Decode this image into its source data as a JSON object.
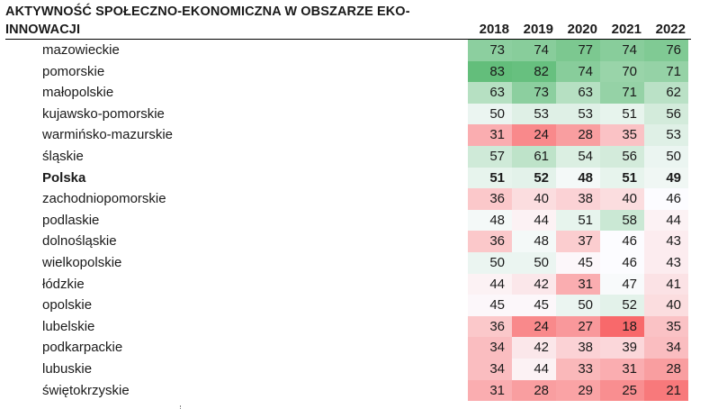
{
  "chart_data": {
    "type": "table",
    "title": "AKTYWNOŚĆ SPOŁECZNO-EKONOMICZNA W OBSZARZE EKO-INNOWACJI",
    "title_lines": [
      "AKTYWNOŚĆ SPOŁECZNO-EKONOMICZNA W OBSZARZE EKO-",
      "INNOWACJI"
    ],
    "columns": [
      "2018",
      "2019",
      "2020",
      "2021",
      "2022"
    ],
    "rows": [
      {
        "region": "mazowieckie",
        "values": [
          73,
          74,
          77,
          74,
          76
        ]
      },
      {
        "region": "pomorskie",
        "values": [
          83,
          82,
          74,
          70,
          71
        ]
      },
      {
        "region": "małopolskie",
        "values": [
          63,
          73,
          63,
          71,
          62
        ]
      },
      {
        "region": "kujawsko-pomorskie",
        "values": [
          50,
          53,
          53,
          51,
          56
        ]
      },
      {
        "region": "warmińsko-mazurskie",
        "values": [
          31,
          24,
          28,
          35,
          53
        ]
      },
      {
        "region": "śląskie",
        "values": [
          57,
          61,
          54,
          56,
          50
        ]
      },
      {
        "region": "Polska",
        "values": [
          51,
          52,
          48,
          51,
          49
        ],
        "bold": true
      },
      {
        "region": "zachodniopomorskie",
        "values": [
          36,
          40,
          38,
          40,
          46
        ]
      },
      {
        "region": "podlaskie",
        "values": [
          48,
          44,
          51,
          58,
          44
        ]
      },
      {
        "region": "dolnośląskie",
        "values": [
          36,
          48,
          37,
          46,
          43
        ]
      },
      {
        "region": "wielkopolskie",
        "values": [
          50,
          50,
          45,
          46,
          43
        ]
      },
      {
        "region": "łódzkie",
        "values": [
          44,
          42,
          31,
          47,
          41
        ]
      },
      {
        "region": "opolskie",
        "values": [
          45,
          45,
          50,
          52,
          40
        ]
      },
      {
        "region": "lubelskie",
        "values": [
          36,
          24,
          27,
          18,
          35
        ]
      },
      {
        "region": "podkarpackie",
        "values": [
          34,
          42,
          38,
          39,
          34
        ]
      },
      {
        "region": "lubuskie",
        "values": [
          34,
          44,
          33,
          31,
          28
        ]
      },
      {
        "region": "świętokrzyskie",
        "values": [
          31,
          28,
          29,
          25,
          21
        ]
      }
    ],
    "color_scale": {
      "type": "diverging",
      "low_color": "#f8696b",
      "mid_color": "#fcfcff",
      "high_color": "#63be7b"
    }
  }
}
